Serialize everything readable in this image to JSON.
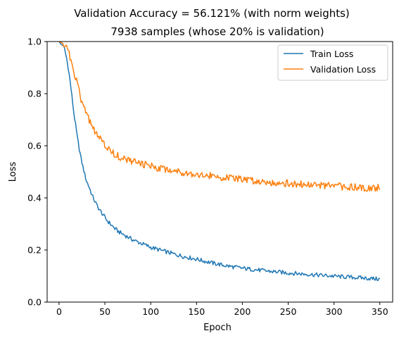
{
  "chart_data": {
    "type": "line",
    "title": "Validation Accuracy = 56.121% (with norm weights)",
    "subtitle": "7938 samples (whose 20% is validation)",
    "xlabel": "Epoch",
    "ylabel": "Loss",
    "xlim": [
      -13,
      364
    ],
    "ylim": [
      0,
      1
    ],
    "x_ticks": [
      0,
      50,
      100,
      150,
      200,
      250,
      300,
      350
    ],
    "y_ticks": [
      0.0,
      0.2,
      0.4,
      0.6,
      0.8,
      1.0
    ],
    "x_tick_labels": [
      "0",
      "50",
      "100",
      "150",
      "200",
      "250",
      "300",
      "350"
    ],
    "y_tick_labels": [
      "0.0",
      "0.2",
      "0.4",
      "0.6",
      "0.8",
      "1.0"
    ],
    "grid": false,
    "legend_position": "top-right",
    "series": [
      {
        "name": "Train Loss",
        "color": "#1f77b4",
        "points": [
          [
            0,
            1.0
          ],
          [
            2,
            0.99
          ],
          [
            4,
            0.985
          ],
          [
            6,
            0.97
          ],
          [
            8,
            0.94
          ],
          [
            10,
            0.9
          ],
          [
            12,
            0.85
          ],
          [
            14,
            0.79
          ],
          [
            16,
            0.73
          ],
          [
            18,
            0.68
          ],
          [
            20,
            0.63
          ],
          [
            22,
            0.59
          ],
          [
            24,
            0.55
          ],
          [
            26,
            0.52
          ],
          [
            28,
            0.49
          ],
          [
            30,
            0.465
          ],
          [
            33,
            0.44
          ],
          [
            36,
            0.41
          ],
          [
            40,
            0.38
          ],
          [
            44,
            0.355
          ],
          [
            48,
            0.335
          ],
          [
            52,
            0.315
          ],
          [
            56,
            0.3
          ],
          [
            60,
            0.285
          ],
          [
            65,
            0.27
          ],
          [
            70,
            0.26
          ],
          [
            75,
            0.25
          ],
          [
            80,
            0.24
          ],
          [
            85,
            0.232
          ],
          [
            90,
            0.225
          ],
          [
            95,
            0.218
          ],
          [
            100,
            0.21
          ],
          [
            110,
            0.2
          ],
          [
            120,
            0.19
          ],
          [
            130,
            0.18
          ],
          [
            140,
            0.172
          ],
          [
            150,
            0.165
          ],
          [
            160,
            0.156
          ],
          [
            170,
            0.148
          ],
          [
            180,
            0.141
          ],
          [
            190,
            0.135
          ],
          [
            200,
            0.13
          ],
          [
            215,
            0.124
          ],
          [
            230,
            0.118
          ],
          [
            250,
            0.112
          ],
          [
            270,
            0.107
          ],
          [
            290,
            0.102
          ],
          [
            310,
            0.097
          ],
          [
            330,
            0.093
          ],
          [
            350,
            0.088
          ]
        ]
      },
      {
        "name": "Validation Loss",
        "color": "#ff7f0e",
        "points": [
          [
            0,
            1.0
          ],
          [
            3,
            0.995
          ],
          [
            6,
            0.99
          ],
          [
            9,
            0.975
          ],
          [
            12,
            0.94
          ],
          [
            15,
            0.9
          ],
          [
            18,
            0.86
          ],
          [
            21,
            0.82
          ],
          [
            24,
            0.78
          ],
          [
            27,
            0.75
          ],
          [
            30,
            0.72
          ],
          [
            34,
            0.69
          ],
          [
            38,
            0.66
          ],
          [
            42,
            0.64
          ],
          [
            46,
            0.62
          ],
          [
            50,
            0.6
          ],
          [
            55,
            0.585
          ],
          [
            60,
            0.57
          ],
          [
            65,
            0.56
          ],
          [
            70,
            0.55
          ],
          [
            80,
            0.54
          ],
          [
            90,
            0.53
          ],
          [
            100,
            0.522
          ],
          [
            110,
            0.515
          ],
          [
            120,
            0.508
          ],
          [
            130,
            0.502
          ],
          [
            140,
            0.496
          ],
          [
            150,
            0.49
          ],
          [
            165,
            0.484
          ],
          [
            180,
            0.478
          ],
          [
            200,
            0.47
          ],
          [
            225,
            0.462
          ],
          [
            250,
            0.455
          ],
          [
            275,
            0.45
          ],
          [
            300,
            0.445
          ],
          [
            325,
            0.44
          ],
          [
            350,
            0.438
          ]
        ]
      }
    ]
  }
}
